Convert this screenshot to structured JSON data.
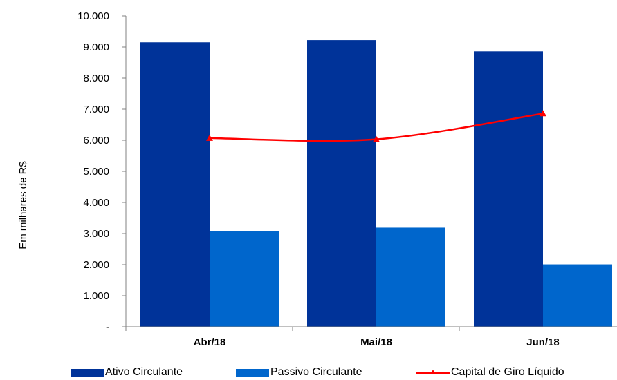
{
  "chart_data": {
    "type": "bar",
    "categories": [
      "Abr/18",
      "Mai/18",
      "Jun/18"
    ],
    "series": [
      {
        "name": "Ativo Circulante",
        "kind": "bar",
        "color": "#003399",
        "values": [
          9150,
          9220,
          8860
        ]
      },
      {
        "name": "Passivo Circulante",
        "kind": "bar",
        "color": "#0066CC",
        "values": [
          3080,
          3190,
          2010
        ]
      },
      {
        "name": "Capital de Giro Líquido",
        "kind": "line",
        "marker": "triangle",
        "color": "#FF0000",
        "values": [
          6070,
          6030,
          6860
        ]
      }
    ],
    "ylabel": "Em milhares de R$",
    "ylim": [
      0,
      10000
    ],
    "yticks": [
      0,
      1000,
      2000,
      3000,
      4000,
      5000,
      6000,
      7000,
      8000,
      9000,
      10000
    ],
    "ytick_labels": [
      "-",
      "1.000",
      "2.000",
      "3.000",
      "4.000",
      "5.000",
      "6.000",
      "7.000",
      "8.000",
      "9.000",
      "10.000"
    ],
    "grid": false,
    "legend_position": "bottom"
  }
}
